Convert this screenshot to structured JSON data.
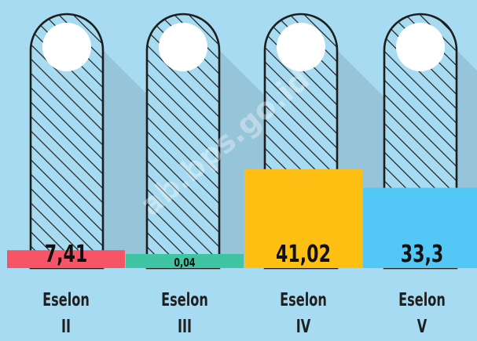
{
  "chart_data": {
    "type": "bar",
    "categories": [
      "Eselon II",
      "Eselon III",
      "Eselon IV",
      "Eselon V"
    ],
    "category_lines": [
      [
        "Eselon",
        "II"
      ],
      [
        "Eselon",
        "III"
      ],
      [
        "Eselon",
        "IV"
      ],
      [
        "Eselon",
        "V"
      ]
    ],
    "values": [
      7.41,
      0.04,
      41.02,
      33.3
    ],
    "value_labels": [
      "7,41",
      "0,04",
      "41,02",
      "33,3"
    ],
    "bar_colors": [
      "#f75468",
      "#3fc5a3",
      "#fdbf12",
      "#53c7f5"
    ],
    "ylim": [
      0,
      100
    ],
    "grid": false
  },
  "colors": {
    "background": "#a7dbf1",
    "hatch": "#1d1d1d",
    "circle": "#ffffff"
  },
  "watermark": "ab.bps.go.id"
}
